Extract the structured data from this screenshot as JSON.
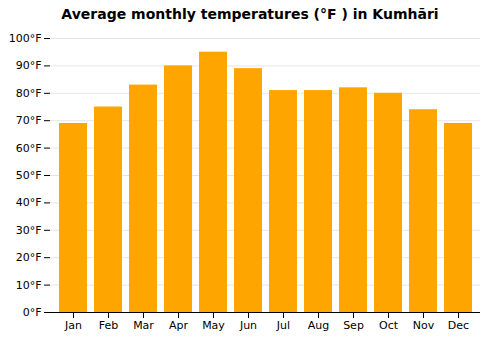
{
  "chart_data": {
    "type": "bar",
    "title": "Average monthly temperatures (°F ) in Kumhāri",
    "categories": [
      "Jan",
      "Feb",
      "Mar",
      "Apr",
      "May",
      "Jun",
      "Jul",
      "Aug",
      "Sep",
      "Oct",
      "Nov",
      "Dec"
    ],
    "values": [
      69,
      75,
      83,
      90,
      95,
      89,
      81,
      81,
      82,
      80,
      74,
      69
    ],
    "color": "#FFA500",
    "ylim": [
      0,
      100
    ],
    "yticks": [
      {
        "value": 0,
        "label": "0°F"
      },
      {
        "value": 10,
        "label": "10°F"
      },
      {
        "value": 20,
        "label": "20°F"
      },
      {
        "value": 30,
        "label": "30°F"
      },
      {
        "value": 40,
        "label": "40°F"
      },
      {
        "value": 50,
        "label": "50°F"
      },
      {
        "value": 60,
        "label": "60°F"
      },
      {
        "value": 70,
        "label": "70°F"
      },
      {
        "value": 80,
        "label": "80°F"
      },
      {
        "value": 90,
        "label": "90°F"
      },
      {
        "value": 100,
        "label": "100°F"
      }
    ],
    "grid": true
  }
}
